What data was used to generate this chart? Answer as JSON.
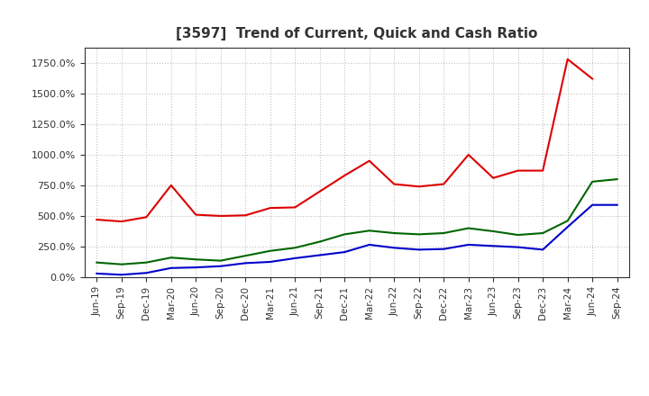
{
  "title": "[3597]  Trend of Current, Quick and Cash Ratio",
  "x_labels": [
    "Jun-19",
    "Sep-19",
    "Dec-19",
    "Mar-20",
    "Jun-20",
    "Sep-20",
    "Dec-20",
    "Mar-21",
    "Jun-21",
    "Sep-21",
    "Dec-21",
    "Mar-22",
    "Jun-22",
    "Sep-22",
    "Dec-22",
    "Mar-23",
    "Jun-23",
    "Sep-23",
    "Dec-23",
    "Mar-24",
    "Jun-24",
    "Sep-24"
  ],
  "current_ratio": [
    470,
    455,
    490,
    750,
    510,
    500,
    505,
    565,
    570,
    700,
    830,
    950,
    760,
    740,
    760,
    1000,
    810,
    870,
    870,
    1780,
    1620,
    null
  ],
  "quick_ratio": [
    120,
    105,
    120,
    160,
    145,
    135,
    175,
    215,
    240,
    290,
    350,
    380,
    360,
    350,
    360,
    400,
    375,
    345,
    360,
    460,
    780,
    800
  ],
  "cash_ratio": [
    30,
    20,
    35,
    75,
    80,
    90,
    115,
    125,
    155,
    180,
    205,
    265,
    240,
    225,
    230,
    265,
    255,
    245,
    225,
    410,
    590,
    590
  ],
  "current_color": "#dd0000",
  "quick_color": "#006600",
  "cash_color": "#0000cc",
  "ylim": [
    0,
    1875
  ],
  "yticks": [
    0,
    250,
    500,
    750,
    1000,
    1250,
    1500,
    1750
  ],
  "background_color": "#ffffff",
  "grid_color": "#bbbbbb",
  "title_color": "#333333",
  "tick_color": "#333333"
}
